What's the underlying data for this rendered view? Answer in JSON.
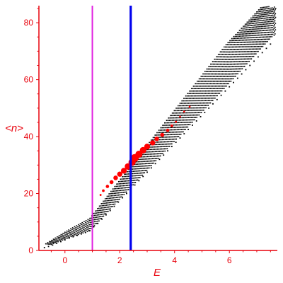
{
  "chart_data": {
    "type": "scatter",
    "title": "",
    "xlabel": "E",
    "ylabel": "<n>",
    "xlim": [
      -0.95,
      7.75
    ],
    "ylim": [
      0,
      86
    ],
    "x_ticks": [
      "0",
      "2",
      "4",
      "6"
    ],
    "x_tick_values": [
      0,
      2,
      4,
      6
    ],
    "y_ticks": [
      "0",
      "20",
      "40",
      "60",
      "80"
    ],
    "y_tick_values": [
      0,
      20,
      40,
      60,
      80
    ],
    "grid": false,
    "legend": "none",
    "axis_color": "#e8000b",
    "vertical_lines": [
      {
        "x": 1.0,
        "color": "#e020e0"
      },
      {
        "x": 2.4,
        "color": "#0000ee"
      }
    ],
    "small_points_color": "#000000",
    "large_points_color": "#ff0000",
    "series": [
      {
        "values_description": "",
        "points": [
          [
            -0.75,
            1
          ],
          [
            -0.6,
            1.4
          ],
          [
            -0.45,
            1.9
          ],
          [
            -0.3,
            2.5
          ],
          [
            -0.15,
            3.1
          ],
          [
            0.0,
            3.7
          ],
          [
            0.15,
            4.3
          ],
          [
            0.3,
            4.8
          ],
          [
            0.45,
            5.3
          ],
          [
            0.6,
            5.8
          ],
          [
            0.75,
            6.3
          ],
          [
            0.9,
            6.9
          ],
          [
            1.05,
            8.3
          ],
          [
            1.2,
            9.5
          ],
          [
            1.35,
            11.0
          ],
          [
            1.5,
            12.5
          ],
          [
            1.65,
            14.0
          ],
          [
            1.8,
            15.5
          ],
          [
            1.95,
            17.0
          ],
          [
            2.1,
            18.5
          ],
          [
            2.25,
            20.0
          ],
          [
            2.4,
            21.5
          ],
          [
            2.55,
            23.0
          ],
          [
            2.7,
            24.5
          ],
          [
            2.85,
            26.0
          ],
          [
            3.0,
            27.5
          ],
          [
            3.15,
            29.0
          ],
          [
            3.3,
            30.5
          ],
          [
            3.45,
            32.0
          ],
          [
            3.6,
            33.5
          ],
          [
            3.75,
            35.0
          ],
          [
            3.9,
            36.5
          ],
          [
            4.05,
            38.0
          ],
          [
            4.2,
            39.5
          ],
          [
            4.35,
            41.0
          ],
          [
            4.5,
            42.5
          ],
          [
            4.65,
            44.0
          ],
          [
            4.8,
            45.5
          ],
          [
            4.95,
            47.0
          ],
          [
            5.1,
            48.5
          ],
          [
            5.25,
            50.0
          ],
          [
            5.4,
            51.5
          ],
          [
            5.55,
            53.0
          ],
          [
            5.7,
            54.5
          ],
          [
            5.85,
            56.0
          ],
          [
            6.0,
            57.5
          ],
          [
            6.15,
            59.0
          ],
          [
            6.3,
            60.5
          ],
          [
            6.45,
            62.0
          ],
          [
            6.6,
            63.5
          ],
          [
            6.75,
            65.0
          ],
          [
            6.9,
            66.5
          ],
          [
            7.05,
            68.0
          ],
          [
            7.2,
            69.5
          ],
          [
            7.35,
            71.0
          ],
          [
            7.5,
            72.5
          ]
        ]
      },
      {
        "values_description": "",
        "points": [
          [
            1.3,
            19.5
          ],
          [
            1.4,
            21.0
          ],
          [
            1.55,
            22.5
          ],
          [
            1.7,
            24.0
          ],
          [
            1.85,
            25.5
          ],
          [
            2.0,
            26.8
          ],
          [
            2.15,
            28.0
          ],
          [
            2.3,
            29.5
          ],
          [
            2.45,
            31.0
          ],
          [
            2.55,
            32.5
          ],
          [
            2.7,
            33.8
          ],
          [
            2.85,
            35.2
          ],
          [
            3.0,
            36.5
          ],
          [
            3.2,
            37.8
          ],
          [
            3.35,
            39.2
          ],
          [
            3.55,
            40.6
          ],
          [
            3.75,
            42.2
          ],
          [
            3.9,
            43.8
          ],
          [
            4.05,
            45.2
          ],
          [
            4.2,
            47.0
          ],
          [
            4.35,
            48.8
          ],
          [
            4.55,
            50.5
          ]
        ]
      }
    ]
  }
}
